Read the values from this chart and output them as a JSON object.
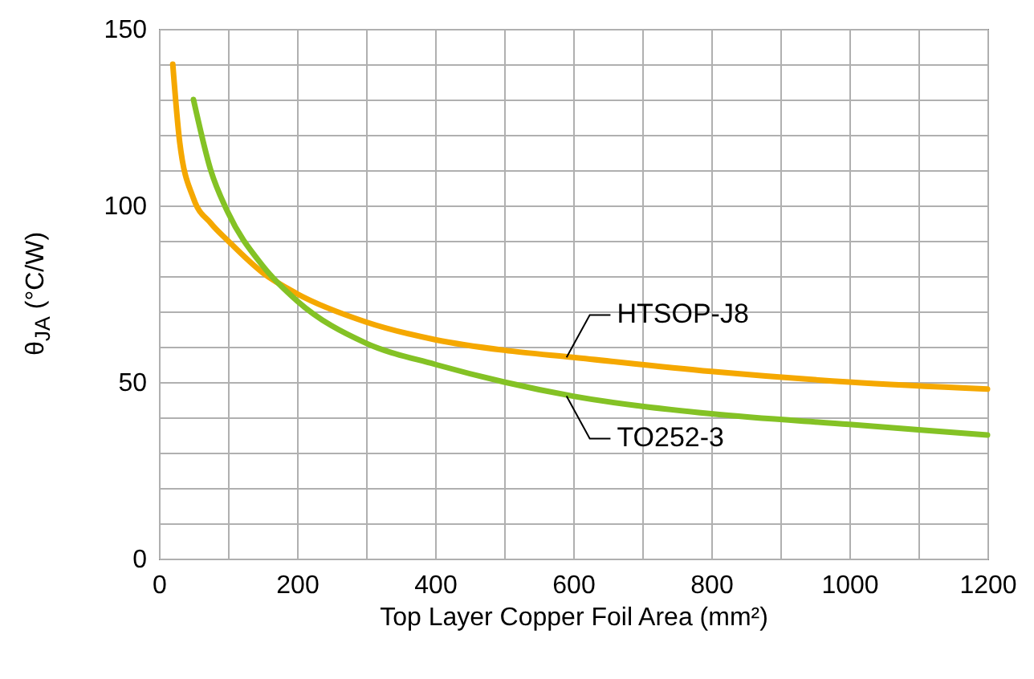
{
  "chart_data": {
    "type": "line",
    "xlabel": "Top Layer Copper Foil Area (mm²)",
    "ylabel": "θ$_{JA}$ (°C/W)",
    "xlim": [
      0,
      1200
    ],
    "ylim": [
      0,
      150
    ],
    "xticks": [
      0,
      {
        "value": 100,
        "label": null
      },
      200,
      {
        "value": 300,
        "label": null
      },
      400,
      {
        "value": 500,
        "label": null
      },
      600,
      {
        "value": 700,
        "label": null
      },
      800,
      {
        "value": 900,
        "label": null
      },
      1000,
      {
        "value": 1100,
        "label": null
      },
      1200
    ],
    "yticks": [
      0,
      {
        "value": 10,
        "label": null
      },
      {
        "value": 20,
        "label": null
      },
      {
        "value": 30,
        "label": null
      },
      {
        "value": 40,
        "label": null
      },
      50,
      {
        "value": 60,
        "label": null
      },
      {
        "value": 70,
        "label": null
      },
      {
        "value": 80,
        "label": null
      },
      {
        "value": 90,
        "label": null
      },
      100,
      {
        "value": 110,
        "label": null
      },
      {
        "value": 120,
        "label": null
      },
      {
        "value": 130,
        "label": null
      },
      {
        "value": 140,
        "label": null
      },
      150
    ],
    "grid": true,
    "marker": "none",
    "line_style": "solid",
    "x": [
      20,
      30,
      50,
      75,
      100,
      150,
      200,
      300,
      400,
      500,
      600,
      800,
      1000,
      1200
    ],
    "series": [
      {
        "name": "HTSOP-J8",
        "color": "#f5a800",
        "values": [
          140,
          118,
          102,
          95,
          90,
          81,
          75,
          67,
          62,
          59,
          57,
          53,
          50,
          48
        ]
      },
      {
        "name": "TO252-3",
        "color": "#84c225",
        "x": [
          50,
          75,
          100,
          150,
          200,
          300,
          400,
          500,
          600,
          800,
          1000,
          1200
        ],
        "values": [
          130,
          110,
          98,
          83,
          73,
          61,
          55,
          50,
          46,
          41,
          38,
          35
        ]
      }
    ]
  }
}
